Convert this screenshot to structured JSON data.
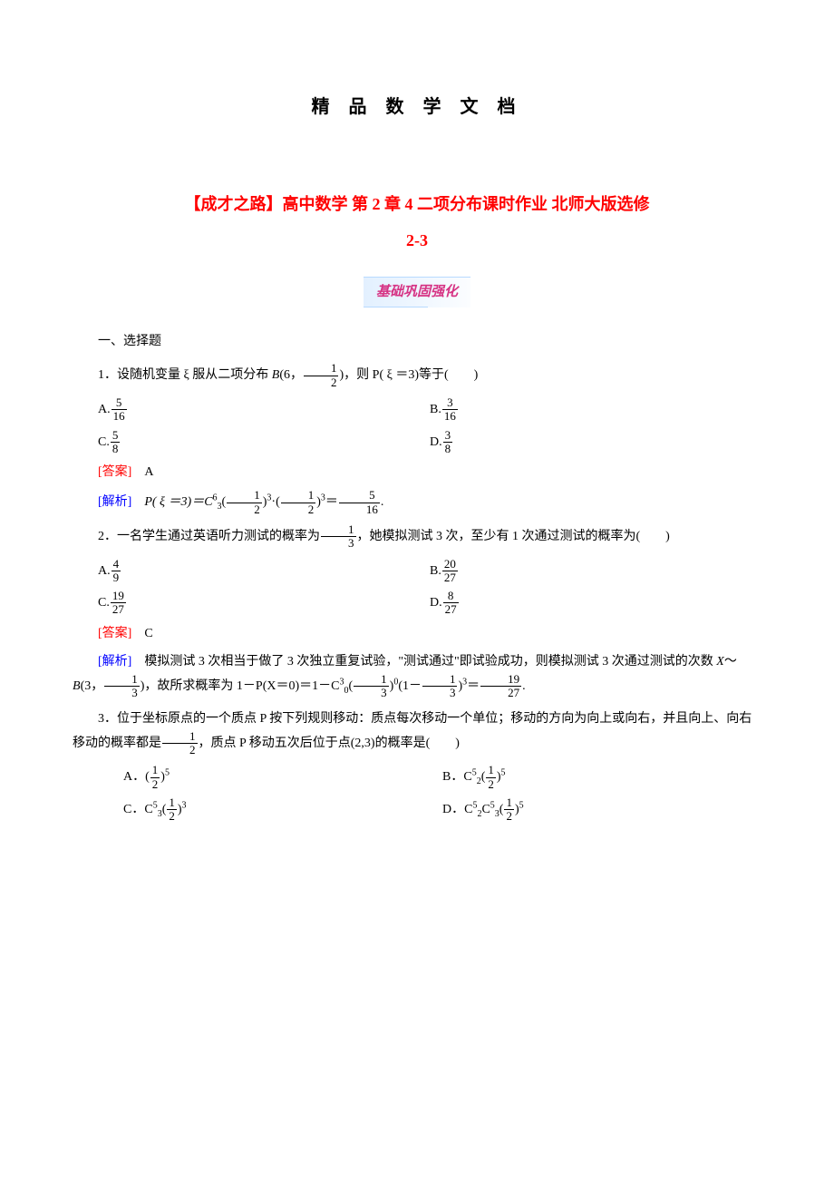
{
  "header": {
    "title": "精 品 数 学 文 档"
  },
  "mainTitle": {
    "line1": "【成才之路】高中数学 第 2 章 4 二项分布课时作业 北师大版选修",
    "line2": "2-3"
  },
  "badge": "基础巩固强化",
  "sectionLabel": "一、选择题",
  "q1": {
    "stem_pre": "1．设随机变量 ξ 服从二项分布 ",
    "B_label": "B",
    "B_args_pre": "(6，",
    "B_frac_n": "1",
    "B_frac_d": "2",
    "B_args_post": ")",
    "stem_post": "，则 P( ξ ＝3)等于(　　)",
    "optA_pre": "A.",
    "optA_n": "5",
    "optA_d": "16",
    "optB_pre": "B.",
    "optB_n": "3",
    "optB_d": "16",
    "optC_pre": "C.",
    "optC_n": "5",
    "optC_d": "8",
    "optD_pre": "D.",
    "optD_n": "3",
    "optD_d": "8",
    "answerLabel": "[答案]",
    "answer": "A",
    "parseLabel": "[解析]",
    "parse_pre": "P( ξ ＝3)＝C",
    "parse_c_sup": "6",
    "parse_c_sub": "3",
    "parse_mid1": "(",
    "p1_n": "1",
    "p1_d": "2",
    "p1_exp": "3",
    "dot": "·",
    "parse_mid2": "(",
    "p2_n": "1",
    "p2_d": "2",
    "p2_exp": "3",
    "eq": "＝",
    "res_n": "5",
    "res_d": "16",
    "period": "."
  },
  "q2": {
    "stem_pre": "2．一名学生通过英语听力测试的概率为",
    "pf_n": "1",
    "pf_d": "3",
    "stem_post": "，她模拟测试 3 次，至少有 1 次通过测试的概率为(　　)",
    "optA_pre": "A.",
    "optA_n": "4",
    "optA_d": "9",
    "optB_pre": "B.",
    "optB_n": "20",
    "optB_d": "27",
    "optC_pre": "C.",
    "optC_n": "19",
    "optC_d": "27",
    "optD_pre": "D.",
    "optD_n": "8",
    "optD_d": "27",
    "answerLabel": "[答案]",
    "answer": "C",
    "parseLabel": "[解析]",
    "parse_t1": "模拟测试 3 次相当于做了 3 次独立重复试验，\"测试通过\"即试验成功，则模拟测试 3 次通过测试的次数 ",
    "X": "X",
    "tilde": "～",
    "B": "B",
    "B_args_pre": "(3，",
    "bf_n": "1",
    "bf_d": "3",
    "B_args_post": ")",
    "parse_t2": "，故所求概率为 1－P(X＝0)＝1－C",
    "c_sup": "3",
    "c_sub": "0",
    "lp1": "(",
    "f1_n": "1",
    "f1_d": "3",
    "e1": "0",
    "lp2": "(1－",
    "f2_n": "1",
    "f2_d": "3",
    "rp2": ")",
    "e2": "3",
    "eq": "＝",
    "r_n": "19",
    "r_d": "27",
    "period": "."
  },
  "q3": {
    "stem_t1": "3．位于坐标原点的一个质点 P 按下列规则移动：质点每次移动一个单位；移动的方向为向上或向右，并且向上、向右移动的概率都是",
    "hf_n": "1",
    "hf_d": "2",
    "stem_t2": "，质点 P 移动五次后位于点(2,3)的概率是(　　)",
    "optA_pre": "A．(",
    "A_n": "1",
    "A_d": "2",
    "A_exp": "5",
    "optB_pre": "B．C",
    "B_sup": "5",
    "B_sub": "2",
    "B_lp": "(",
    "B_n": "1",
    "B_d": "2",
    "B_exp": "5",
    "optC_pre": "C．C",
    "C_sup": "5",
    "C_sub": "3",
    "C_lp": "(",
    "C_n": "1",
    "C_d": "2",
    "C_exp": "3",
    "optD_pre": "D．C",
    "D_sup1": "5",
    "D_sub1": "2",
    "D_c2": "C",
    "D_sup2": "5",
    "D_sub2": "3",
    "D_lp": "(",
    "D_n": "1",
    "D_d": "2",
    "D_exp": "5"
  }
}
